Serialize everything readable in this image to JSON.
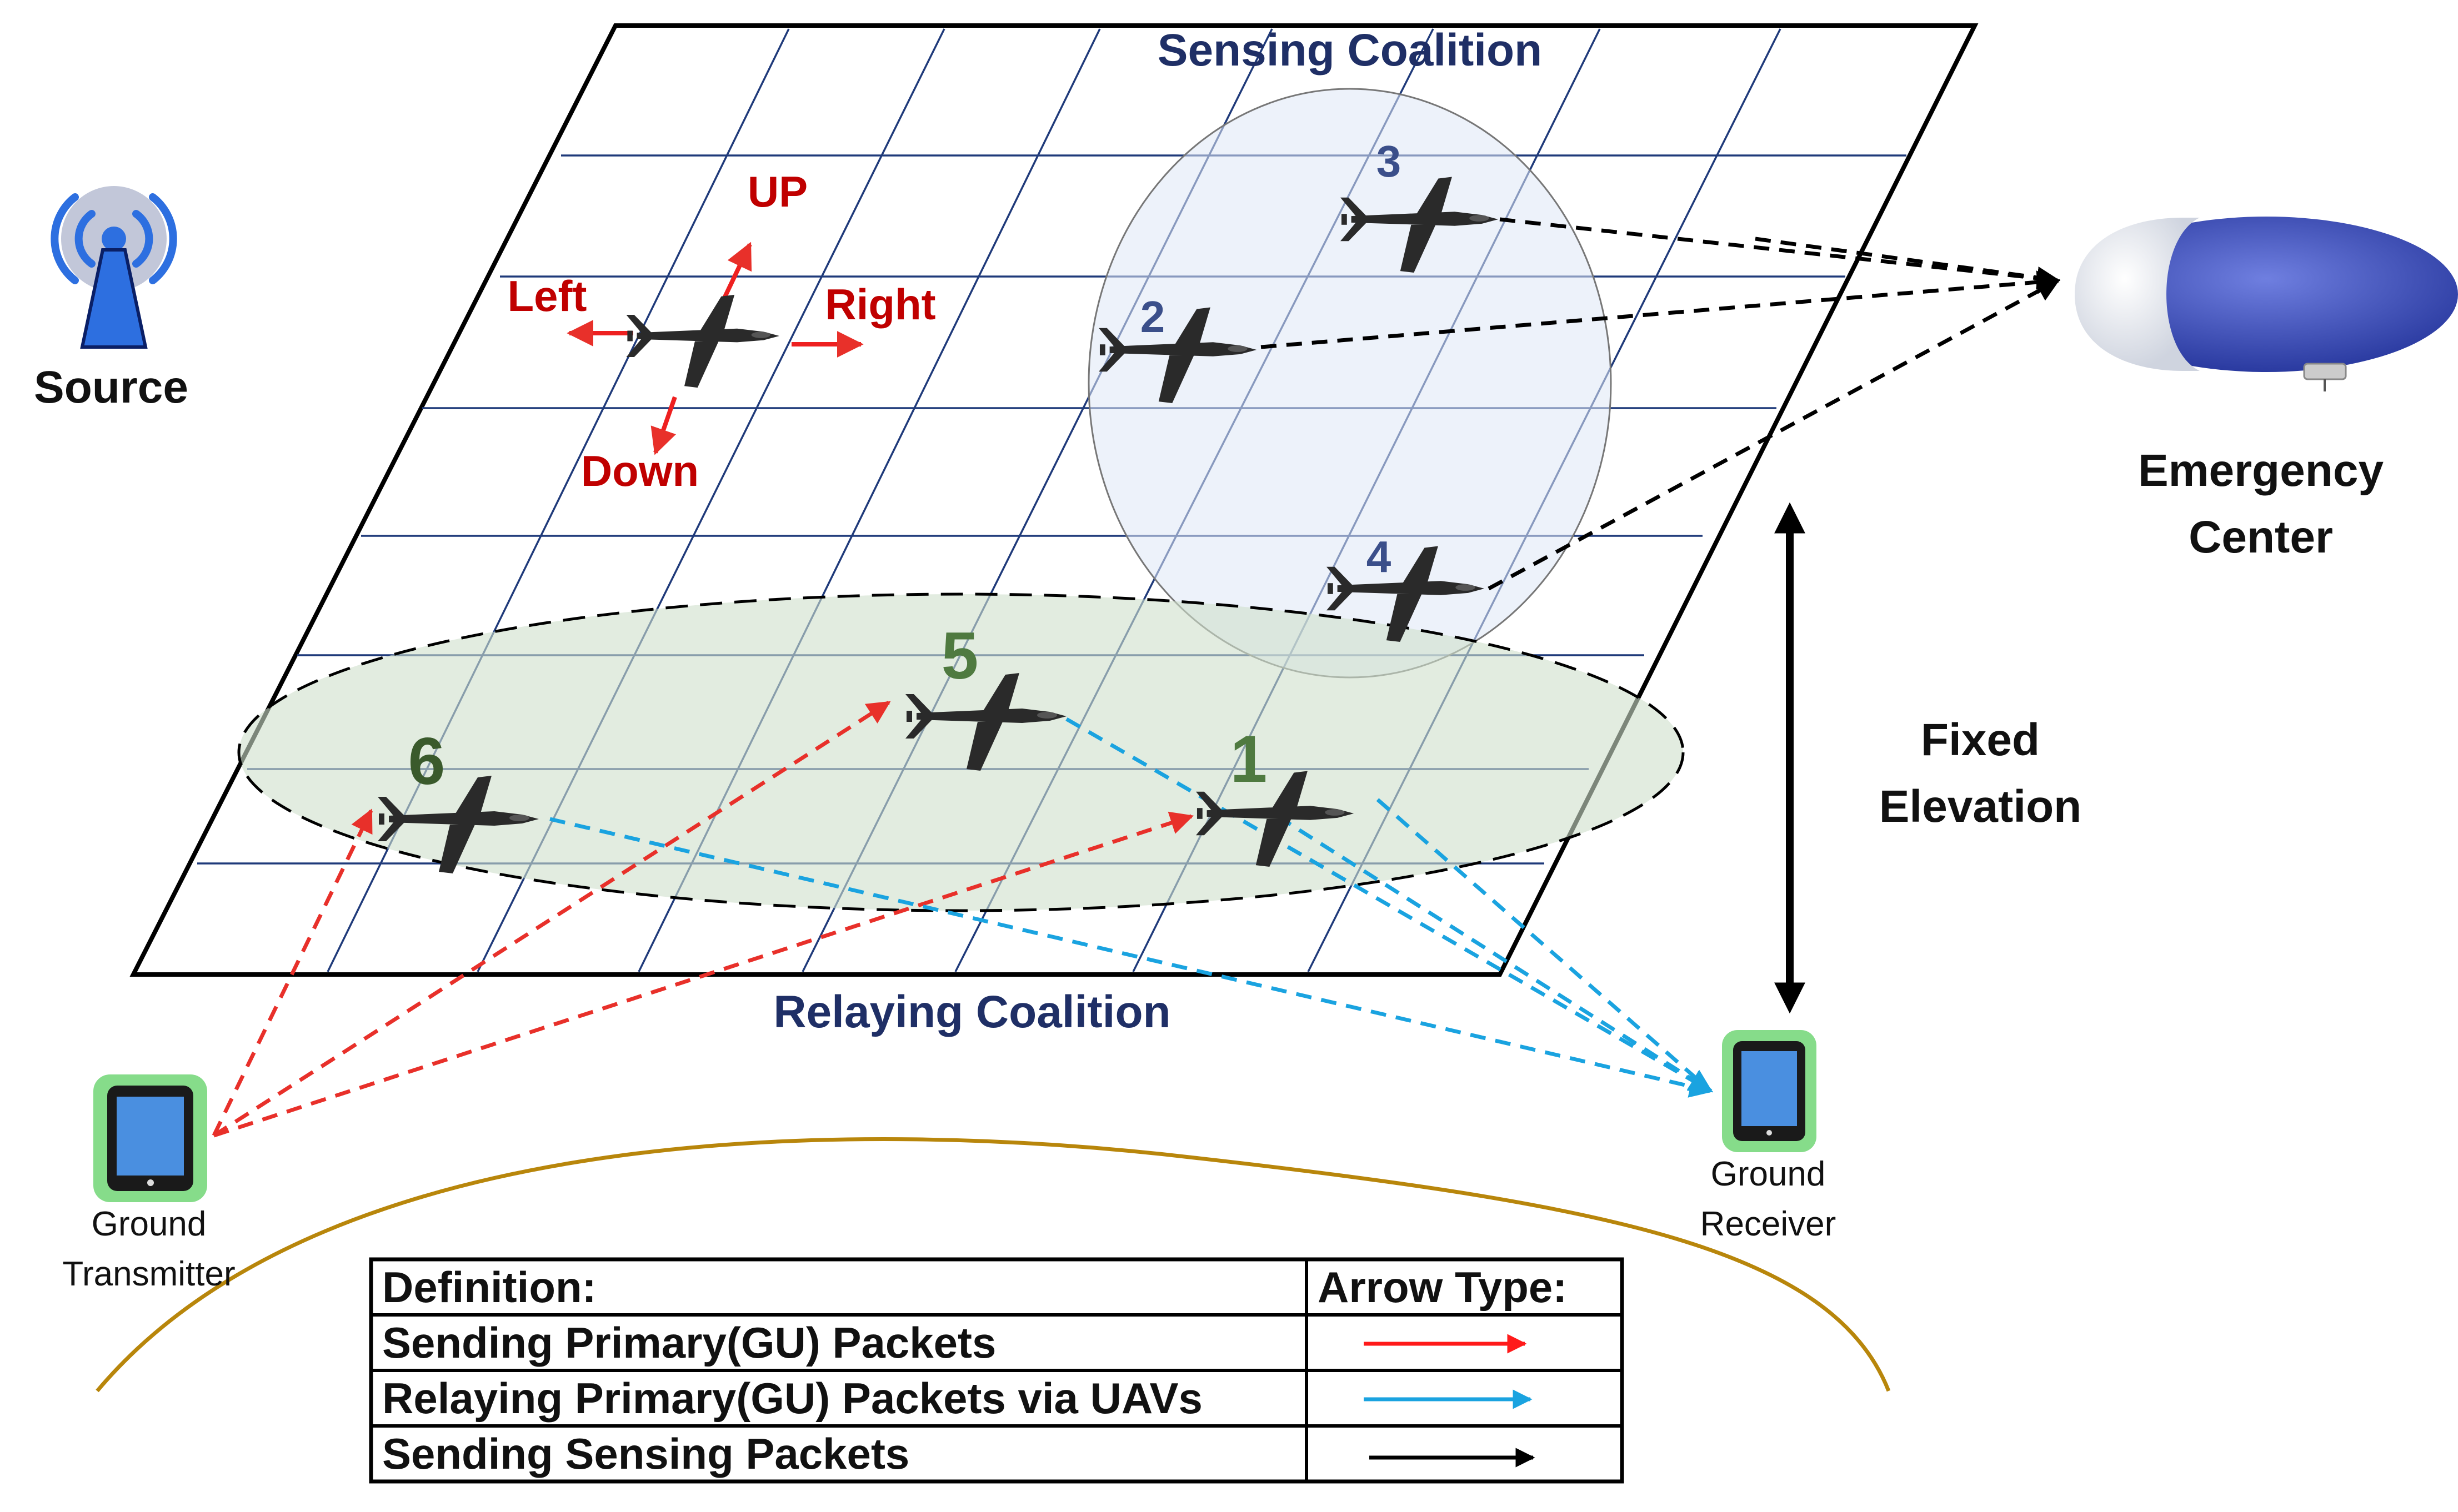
{
  "source": {
    "label": "Source",
    "icon": "antenna-tower-icon"
  },
  "coalitions": {
    "sensing": "Sensing Coalition",
    "relaying": "Relaying Coalition"
  },
  "directions": {
    "up": "UP",
    "down": "Down",
    "left": "Left",
    "right": "Right"
  },
  "uav_numbers": {
    "u1": "1",
    "u2": "2",
    "u3": "3",
    "u4": "4",
    "u5": "5",
    "u6": "6"
  },
  "emergency_center": {
    "line1": "Emergency",
    "line2": "Center",
    "icon": "airship-icon"
  },
  "elevation": {
    "line1": "Fixed",
    "line2": "Elevation"
  },
  "ground_transmitter": {
    "line1": "Ground",
    "line2": "Transmitter",
    "icon": "tablet-icon"
  },
  "ground_receiver": {
    "line1": "Ground",
    "line2": "Receiver",
    "icon": "tablet-icon"
  },
  "legend": {
    "header_definition": "Definition:",
    "header_arrow": "Arrow Type:",
    "rows": [
      {
        "label": "Sending Primary(GU) Packets",
        "color": "#ff1a1a"
      },
      {
        "label": "Relaying Primary(GU) Packets via UAVs",
        "color": "#1aa3e0"
      },
      {
        "label": "Sending Sensing Packets",
        "color": "#000000"
      }
    ]
  },
  "colors": {
    "red_arrow": "#e8302a",
    "blue_arrow": "#1aa3e0",
    "black_arrow": "#000000",
    "grid": "#1f3a7a",
    "ground_curve": "#b8860b",
    "device_glow": "#22c02a"
  }
}
